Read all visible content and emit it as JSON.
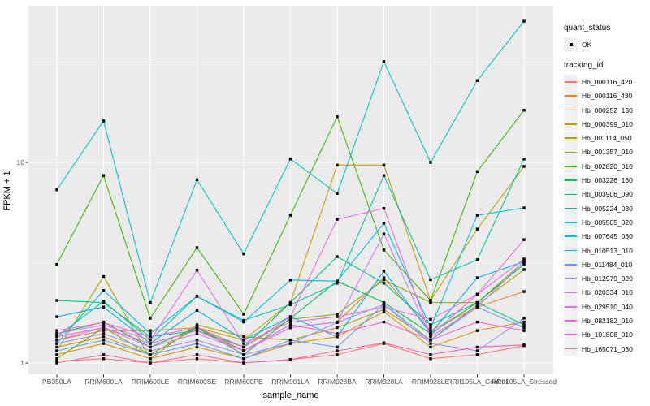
{
  "legend": {
    "quant_status_title": "quant_status",
    "quant_status_ok_label": "OK",
    "tracking_id_title": "tracking_id"
  },
  "colors": {
    "panel_bg": "#EBEBEB",
    "grid_major": "#FFFFFF",
    "grid_minor": "#FFFFFF",
    "tick_mark": "#333333",
    "tick_label": "#4D4D4D",
    "marker": "#000000",
    "legend_key_bg": "#F0F0F0"
  },
  "chart_data": {
    "type": "line",
    "title": "",
    "xlabel": "sample_name",
    "ylabel": "FPKM + 1",
    "y_scale": "log10",
    "ylim": [
      1,
      60
    ],
    "y_major_ticks": [
      10,
      1
    ],
    "y_minor_gridlines": [
      3.162,
      31.623
    ],
    "grid": true,
    "legend_position": "right",
    "quant_status": "OK",
    "categories": [
      "PB350LA",
      "RRIM600LA",
      "RRIM600LE",
      "RRIM600SE",
      "RRIM600PE",
      "RRIM901LA",
      "RRIM928BA",
      "RRIM928LA",
      "RRIM928LE",
      "RRII105LA_Control",
      "RRII105LA_Stressed"
    ],
    "series": [
      {
        "name": "Hb_000116_420",
        "color": "#F8766D",
        "values": [
          1.02,
          1.05,
          1.0,
          1.05,
          1.0,
          1.04,
          1.1,
          1.25,
          1.05,
          1.1,
          1.22
        ]
      },
      {
        "name": "Hb_000116_430",
        "color": "#EA8331",
        "values": [
          1.3,
          1.45,
          1.45,
          1.5,
          1.15,
          1.5,
          1.6,
          2.66,
          1.45,
          1.9,
          2.27
        ]
      },
      {
        "name": "Hb_000252_130",
        "color": "#D89000",
        "values": [
          1.1,
          1.25,
          1.05,
          1.2,
          1.05,
          1.25,
          1.35,
          1.8,
          1.2,
          1.45,
          1.6
        ]
      },
      {
        "name": "Hb_000399_010",
        "color": "#C09B00",
        "values": [
          1.2,
          1.35,
          1.1,
          1.5,
          1.3,
          2.0,
          9.7,
          9.7,
          2.05,
          4.65,
          9.55
        ]
      },
      {
        "name": "Hb_001114_050",
        "color": "#A3A500",
        "values": [
          1.15,
          2.7,
          1.05,
          1.55,
          1.35,
          1.3,
          1.5,
          1.85,
          1.3,
          1.95,
          2.92
        ]
      },
      {
        "name": "Hb_001357_010",
        "color": "#7CAE00",
        "values": [
          1.05,
          1.5,
          1.1,
          1.5,
          1.2,
          1.65,
          1.75,
          2.6,
          2.0,
          2.0,
          3.2
        ]
      },
      {
        "name": "Hb_002820_010",
        "color": "#39B600",
        "values": [
          3.1,
          8.6,
          1.67,
          3.76,
          1.75,
          5.45,
          16.9,
          3.66,
          2.05,
          9.0,
          18.2
        ]
      },
      {
        "name": "Hb_003226_160",
        "color": "#00BB4E",
        "values": [
          1.4,
          1.6,
          1.2,
          1.5,
          1.1,
          1.67,
          2.56,
          2.0,
          1.4,
          2.0,
          3.1
        ]
      },
      {
        "name": "Hb_003906_090",
        "color": "#00BF7D",
        "values": [
          2.05,
          2.0,
          1.35,
          1.45,
          1.2,
          2.0,
          3.39,
          2.5,
          1.55,
          2.0,
          1.55
        ]
      },
      {
        "name": "Hb_005224_030",
        "color": "#00C1A3",
        "values": [
          1.35,
          2.03,
          1.3,
          2.15,
          1.63,
          1.95,
          2.5,
          8.6,
          2.6,
          3.27,
          10.4
        ]
      },
      {
        "name": "Hb_005505_020",
        "color": "#00BFC4",
        "values": [
          7.3,
          16.1,
          2.0,
          8.2,
          3.5,
          10.4,
          7.0,
          31.8,
          10.0,
          25.6,
          50.6
        ]
      },
      {
        "name": "Hb_007645_080",
        "color": "#00B8E5",
        "values": [
          1.25,
          2.3,
          1.4,
          2.15,
          1.6,
          2.59,
          2.56,
          4.97,
          1.5,
          5.45,
          5.93
        ]
      },
      {
        "name": "Hb_010513_010",
        "color": "#00ACFC",
        "values": [
          1.7,
          1.9,
          1.25,
          1.83,
          1.3,
          1.7,
          1.35,
          2.87,
          1.4,
          2.66,
          3.2
        ]
      },
      {
        "name": "Hb_011484_010",
        "color": "#619CFF",
        "values": [
          1.15,
          1.3,
          1.1,
          1.25,
          1.05,
          1.3,
          1.2,
          1.96,
          1.3,
          1.9,
          1.5
        ]
      },
      {
        "name": "Hb_012979_020",
        "color": "#9590FF",
        "values": [
          1.25,
          1.4,
          1.15,
          1.3,
          1.1,
          1.25,
          1.59,
          1.96,
          1.25,
          1.15,
          1.67
        ]
      },
      {
        "name": "Hb_020334_010",
        "color": "#C77CFF",
        "values": [
          1.3,
          1.5,
          1.2,
          1.4,
          1.15,
          1.5,
          1.6,
          4.4,
          1.35,
          1.9,
          3.2
        ]
      },
      {
        "name": "Hb_029510_040",
        "color": "#E76BF3",
        "values": [
          1.4,
          1.55,
          1.3,
          2.9,
          1.25,
          1.6,
          1.7,
          1.9,
          1.65,
          2.2,
          3.3
        ]
      },
      {
        "name": "Hb_082182_010",
        "color": "#FA62DB",
        "values": [
          1.45,
          1.59,
          1.35,
          1.5,
          1.2,
          1.7,
          5.2,
          5.9,
          1.37,
          2.2,
          4.12
        ]
      },
      {
        "name": "Hb_101808_010",
        "color": "#FF61C9",
        "values": [
          1.35,
          1.5,
          1.25,
          1.45,
          1.15,
          1.55,
          1.4,
          1.6,
          1.3,
          1.6,
          1.45
        ]
      },
      {
        "name": "Hb_165071_030",
        "color": "#FF65AE",
        "values": [
          1.0,
          1.1,
          1.0,
          1.1,
          1.0,
          1.04,
          1.15,
          1.26,
          1.1,
          1.2,
          1.23
        ]
      }
    ]
  }
}
